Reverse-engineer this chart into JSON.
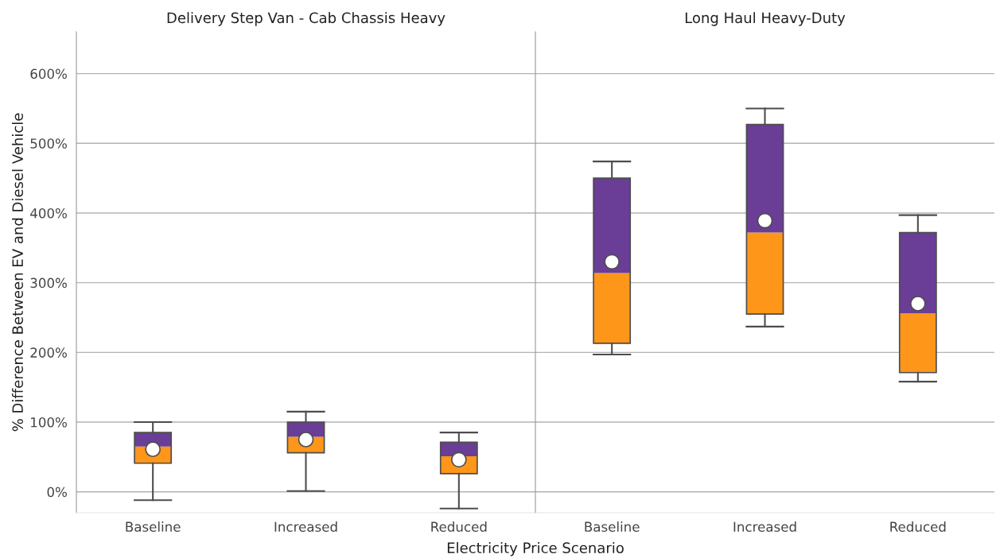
{
  "chart_data": [
    {
      "type": "box",
      "title": "Delivery Step Van - Cab Chassis Heavy",
      "xlabel": "Electricity Price Scenario",
      "ylabel": "% Difference Between EV and Diesel Vehicle",
      "categories": [
        "Baseline",
        "Increased",
        "Reduced"
      ],
      "colors": [
        [
          "#fd9619",
          "#6a3d96"
        ],
        [
          "#fd9619",
          "#6a3d96"
        ],
        [
          "#fd9619",
          "#6a3d96"
        ]
      ],
      "boxes": [
        {
          "low": -12,
          "q1": 41,
          "median": 65,
          "q3": 85,
          "high": 100,
          "mean": 61
        },
        {
          "low": 1,
          "q1": 56,
          "median": 79,
          "q3": 100,
          "high": 115,
          "mean": 75
        },
        {
          "low": -24,
          "q1": 26,
          "median": 51,
          "q3": 71,
          "high": 85,
          "mean": 46
        }
      ],
      "ylim": [
        -30,
        660
      ],
      "yticks": [
        {
          "value": 0,
          "label": "0%"
        },
        {
          "value": 100,
          "label": "100%"
        },
        {
          "value": 200,
          "label": "200%"
        },
        {
          "value": 300,
          "label": "300%"
        },
        {
          "value": 400,
          "label": "400%"
        },
        {
          "value": 500,
          "label": "500%"
        },
        {
          "value": 600,
          "label": "600%"
        }
      ],
      "grid": "y"
    },
    {
      "type": "box",
      "title": "Long Haul Heavy-Duty",
      "categories": [
        "Baseline",
        "Increased",
        "Reduced"
      ],
      "colors": [
        [
          "#fd9619",
          "#6a3d96"
        ],
        [
          "#fd9619",
          "#6a3d96"
        ],
        [
          "#fd9619",
          "#6a3d96"
        ]
      ],
      "boxes": [
        {
          "low": 197,
          "q1": 213,
          "median": 314,
          "q3": 450,
          "high": 474,
          "mean": 330
        },
        {
          "low": 237,
          "q1": 255,
          "median": 372,
          "q3": 527,
          "high": 550,
          "mean": 389
        },
        {
          "low": 158,
          "q1": 171,
          "median": 256,
          "q3": 372,
          "high": 397,
          "mean": 270
        }
      ],
      "ylim": [
        -30,
        660
      ],
      "yticks": [
        {
          "value": 0,
          "label": null
        },
        {
          "value": 100,
          "label": null
        },
        {
          "value": 200,
          "label": null
        },
        {
          "value": 300,
          "label": null
        },
        {
          "value": 400,
          "label": null
        },
        {
          "value": 500,
          "label": null
        },
        {
          "value": 600,
          "label": null
        }
      ],
      "grid": "y",
      "tick_labels": "x"
    }
  ]
}
